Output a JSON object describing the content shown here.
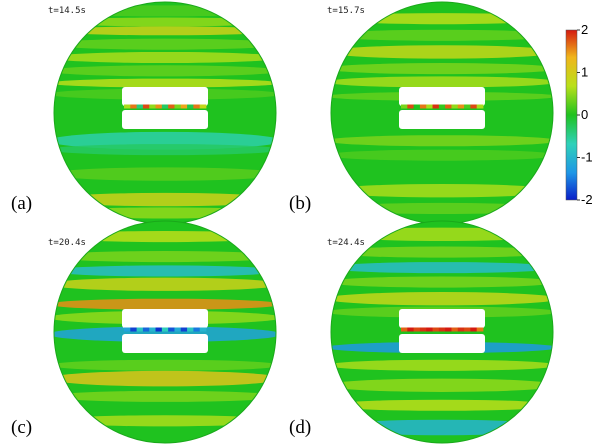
{
  "figure": {
    "panels": [
      {
        "id": "a",
        "letter": "(a)",
        "time": "t=14.5s",
        "bands": [
          {
            "yc": -0.92,
            "h": 0.05,
            "v": 0.2
          },
          {
            "yc": -0.82,
            "h": 0.04,
            "v": 0.5
          },
          {
            "yc": -0.74,
            "h": 0.04,
            "v": 0.9
          },
          {
            "yc": -0.62,
            "h": 0.05,
            "v": 0.3
          },
          {
            "yc": -0.5,
            "h": 0.05,
            "v": 0.6
          },
          {
            "yc": -0.38,
            "h": 0.05,
            "v": 0.3
          },
          {
            "yc": -0.27,
            "h": 0.04,
            "v": 0.7
          },
          {
            "yc": -0.17,
            "h": 0.05,
            "v": 0.2
          },
          {
            "yc": 0.25,
            "h": 0.08,
            "v": -0.6
          },
          {
            "yc": 0.33,
            "h": 0.05,
            "v": -0.3
          },
          {
            "yc": 0.55,
            "h": 0.06,
            "v": 0.25
          },
          {
            "yc": 0.78,
            "h": 0.06,
            "v": 0.9
          },
          {
            "yc": 0.9,
            "h": 0.05,
            "v": 0.5
          }
        ],
        "slit": [
          0.6,
          1.6,
          -0.4,
          1.8,
          0.5,
          1.5,
          -0.3,
          1.7,
          0.4,
          1.4,
          -0.2,
          1.6,
          0.8
        ]
      },
      {
        "id": "b",
        "letter": "(b)",
        "time": "t=15.7s",
        "bands": [
          {
            "yc": -0.85,
            "h": 0.05,
            "v": 0.7
          },
          {
            "yc": -0.7,
            "h": 0.05,
            "v": 0.3
          },
          {
            "yc": -0.55,
            "h": 0.06,
            "v": 0.8
          },
          {
            "yc": -0.4,
            "h": 0.05,
            "v": 0.4
          },
          {
            "yc": -0.28,
            "h": 0.05,
            "v": 0.6
          },
          {
            "yc": -0.15,
            "h": 0.04,
            "v": 0.3
          },
          {
            "yc": 0.25,
            "h": 0.05,
            "v": 0.4
          },
          {
            "yc": 0.38,
            "h": 0.05,
            "v": 0.2
          },
          {
            "yc": 0.7,
            "h": 0.06,
            "v": 0.6
          },
          {
            "yc": 0.86,
            "h": 0.05,
            "v": 0.3
          }
        ],
        "slit": [
          0.4,
          1.8,
          0.0,
          1.6,
          0.6,
          1.9,
          0.1,
          1.7,
          0.5,
          1.5,
          0.2,
          1.8,
          0.6
        ]
      },
      {
        "id": "c",
        "letter": "(c)",
        "time": "t=20.4s",
        "bands": [
          {
            "yc": -0.86,
            "h": 0.05,
            "v": 0.7
          },
          {
            "yc": -0.68,
            "h": 0.05,
            "v": 0.4
          },
          {
            "yc": -0.55,
            "h": 0.05,
            "v": -0.9
          },
          {
            "yc": -0.43,
            "h": 0.06,
            "v": 0.9
          },
          {
            "yc": -0.25,
            "h": 0.05,
            "v": 1.5
          },
          {
            "yc": -0.13,
            "h": 0.06,
            "v": 0.5
          },
          {
            "yc": 0.02,
            "h": 0.07,
            "v": -1.2
          },
          {
            "yc": 0.3,
            "h": 0.05,
            "v": 0.3
          },
          {
            "yc": 0.42,
            "h": 0.07,
            "v": 1.1
          },
          {
            "yc": 0.58,
            "h": 0.05,
            "v": 0.4
          },
          {
            "yc": 0.8,
            "h": 0.05,
            "v": 0.6
          }
        ],
        "slit": [
          -1.2,
          -1.8,
          -0.8,
          -1.6,
          -1.0,
          -1.9,
          -0.7,
          -1.7,
          -1.1,
          -1.8,
          -0.8,
          -1.5,
          -1.0
        ]
      },
      {
        "id": "d",
        "letter": "(d)",
        "time": "t=24.4s",
        "bands": [
          {
            "yc": -0.88,
            "h": 0.06,
            "v": 0.6
          },
          {
            "yc": -0.72,
            "h": 0.05,
            "v": 0.4
          },
          {
            "yc": -0.58,
            "h": 0.05,
            "v": -0.9
          },
          {
            "yc": -0.45,
            "h": 0.05,
            "v": 0.4
          },
          {
            "yc": -0.3,
            "h": 0.06,
            "v": 0.8
          },
          {
            "yc": -0.18,
            "h": 0.05,
            "v": 0.3
          },
          {
            "yc": 0.14,
            "h": 0.05,
            "v": -1.3
          },
          {
            "yc": 0.3,
            "h": 0.05,
            "v": 0.6
          },
          {
            "yc": 0.48,
            "h": 0.06,
            "v": 0.5
          },
          {
            "yc": 0.66,
            "h": 0.05,
            "v": 0.7
          },
          {
            "yc": 0.86,
            "h": 0.07,
            "v": -1.0
          }
        ],
        "slit": [
          1.7,
          2.0,
          1.8,
          1.9,
          2.0,
          1.8,
          1.9,
          2.0,
          1.7,
          1.9,
          1.8,
          2.0,
          1.6
        ]
      }
    ],
    "colorbar": {
      "min": -2,
      "max": 2,
      "ticks": [
        {
          "value": 2,
          "label": "2"
        },
        {
          "value": 1,
          "label": "1"
        },
        {
          "value": 0,
          "label": "0"
        },
        {
          "value": -1,
          "label": "-1"
        },
        {
          "value": -2,
          "label": "-2"
        }
      ]
    },
    "colors": {
      "background": "#1fc21f",
      "scale": [
        "#0a1ec8",
        "#1e96e6",
        "#2fd1b9",
        "#1fc21f",
        "#b9e01a",
        "#f0b51b",
        "#d41a10"
      ]
    }
  }
}
